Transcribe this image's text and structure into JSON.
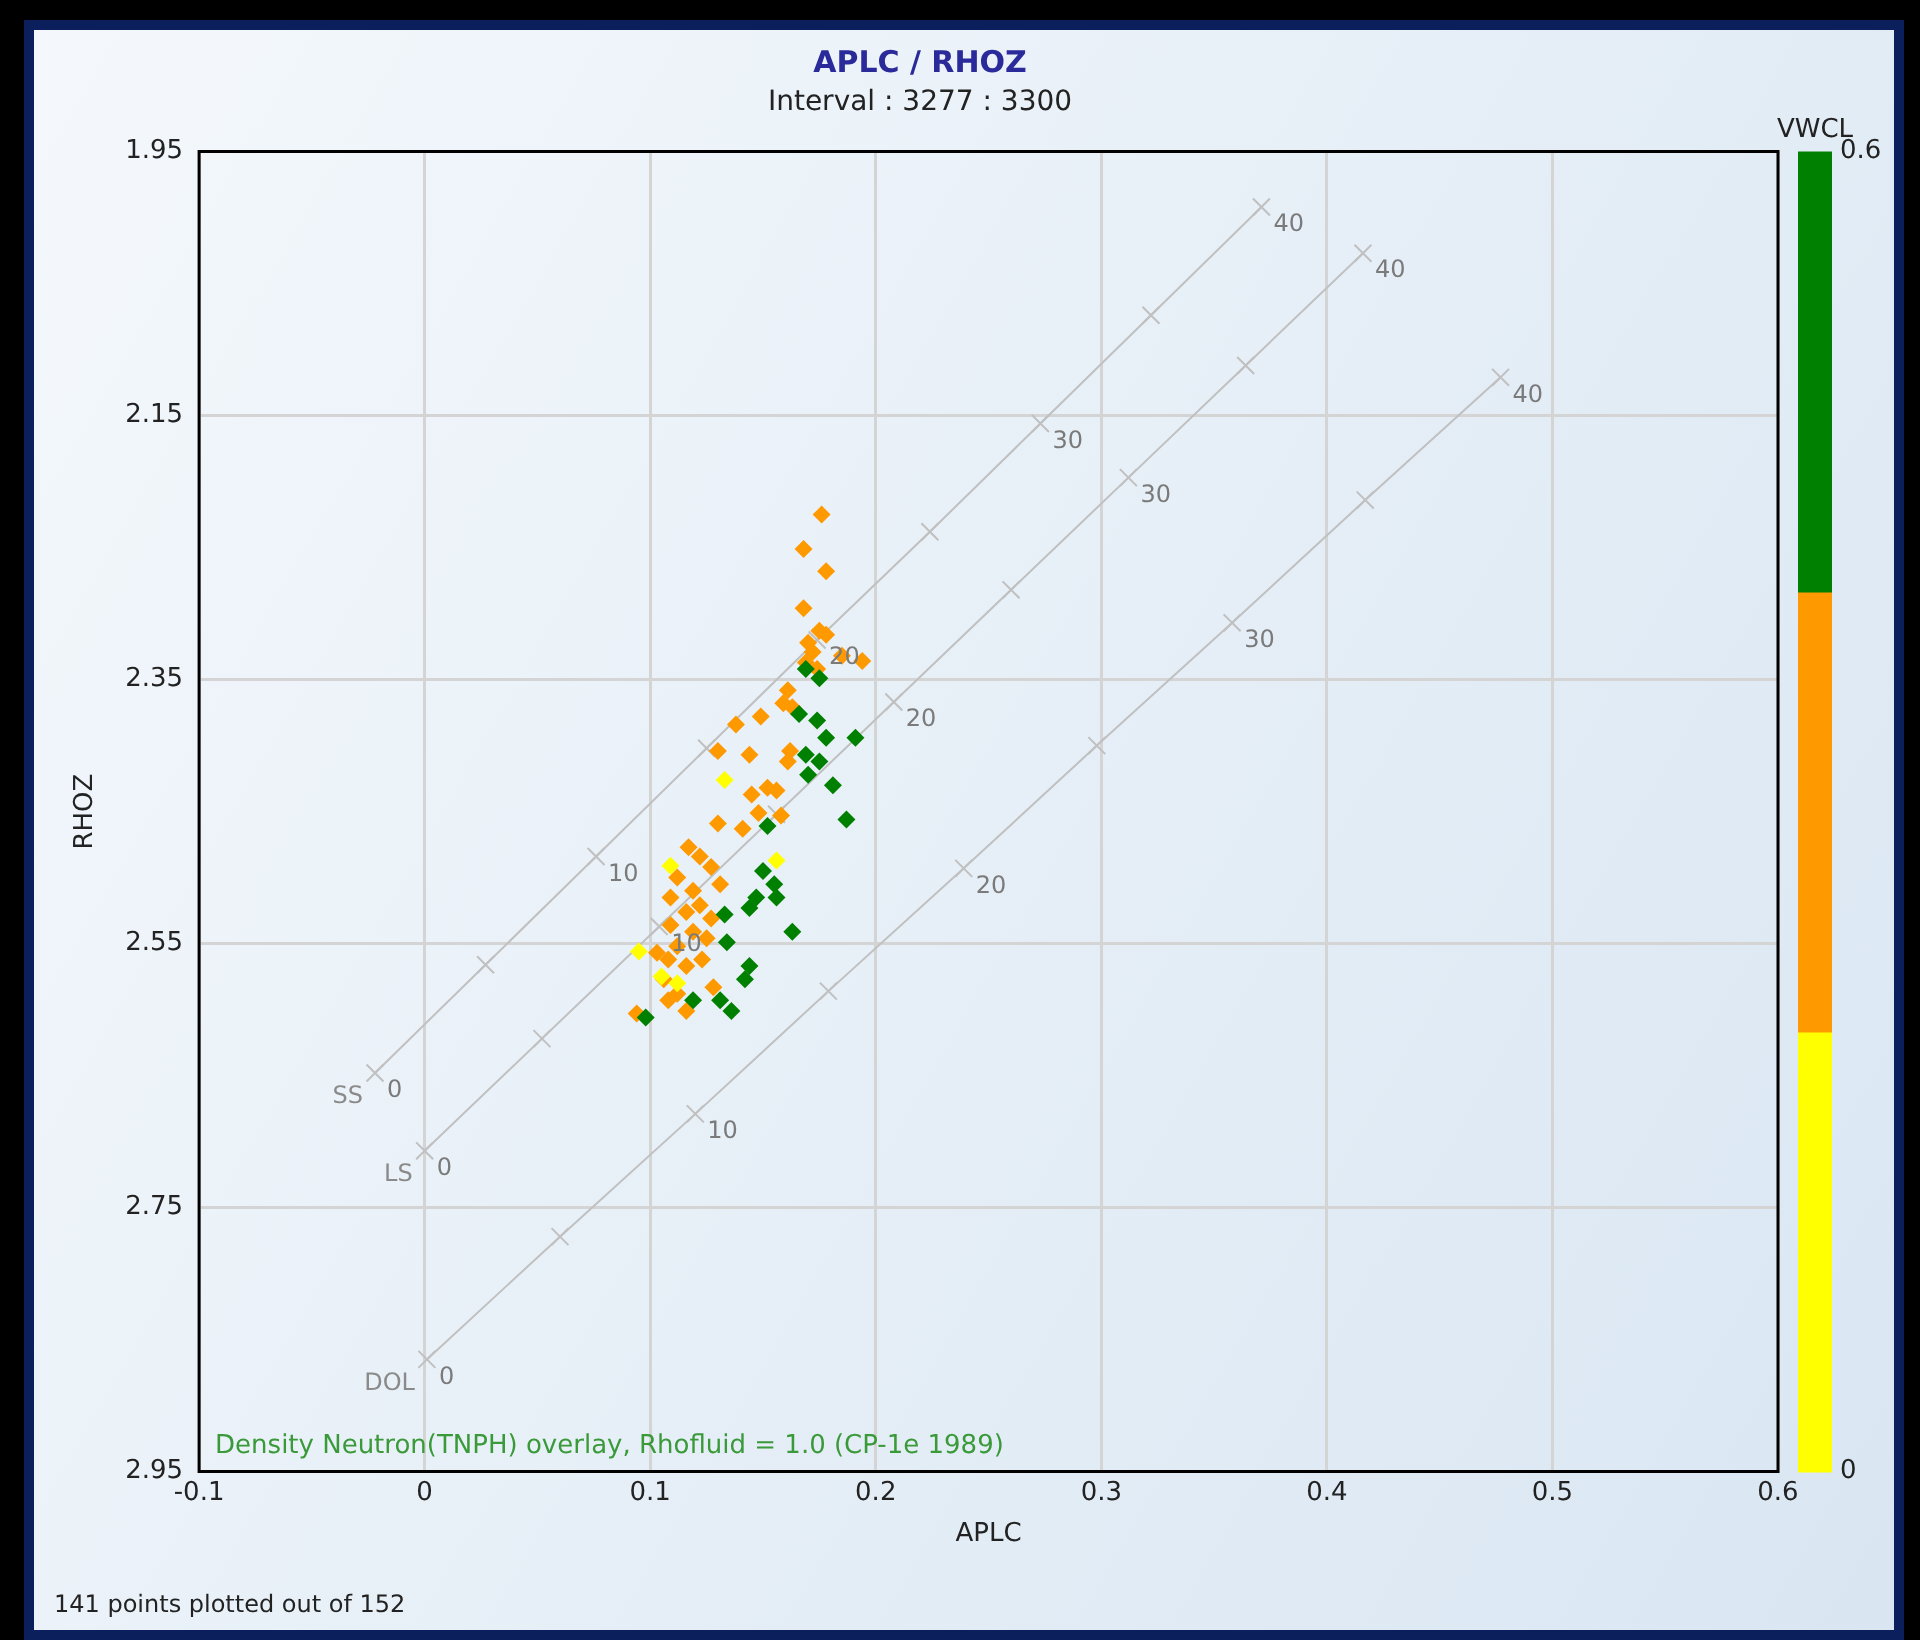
{
  "chart_data": {
    "type": "scatter",
    "title": "APLC / RHOZ",
    "subtitle": "Interval : 3277 : 3300",
    "xlabel": "APLC",
    "ylabel": "RHOZ",
    "clabel": "VWCL",
    "xlim": [
      -0.1,
      0.6
    ],
    "xticks": [
      -0.1,
      0,
      0.1,
      0.2,
      0.3,
      0.4,
      0.5,
      0.6
    ],
    "ylim": [
      2.95,
      1.95
    ],
    "yticks": [
      1.95,
      2.15,
      2.35,
      2.55,
      2.75,
      2.95
    ],
    "clim": [
      0,
      0.6
    ],
    "cticks": [
      0,
      0.6
    ],
    "colors": [
      "#ffff00",
      "#ff9900",
      "#008000"
    ],
    "grid": true,
    "legend": false,
    "annotations": [
      "Density Neutron(TNPH) overlay, Rhofluid = 1.0 (CP-1e 1989)",
      "141 points plotted out of 152",
      {
        "text": "0",
        "x": -0.022,
        "y": 2.648
      },
      {
        "text": "10",
        "x": 0.076,
        "y": 2.484
      },
      {
        "text": "20",
        "x": 0.174,
        "y": 2.32
      },
      {
        "text": "30",
        "x": 0.273,
        "y": 2.156
      },
      {
        "text": "40",
        "x": 0.371,
        "y": 1.992
      },
      {
        "text": "0",
        "x": 0,
        "y": 2.707
      },
      {
        "text": "10",
        "x": 0.104,
        "y": 2.537
      },
      {
        "text": "20",
        "x": 0.208,
        "y": 2.367
      },
      {
        "text": "30",
        "x": 0.312,
        "y": 2.197
      },
      {
        "text": "40",
        "x": 0.416,
        "y": 2.027
      },
      {
        "text": "0",
        "x": 0.001,
        "y": 2.865
      },
      {
        "text": "10",
        "x": 0.12,
        "y": 2.679
      },
      {
        "text": "20",
        "x": 0.239,
        "y": 2.493
      },
      {
        "text": "30",
        "x": 0.358,
        "y": 2.307
      },
      {
        "text": "40",
        "x": 0.477,
        "y": 2.121
      }
    ],
    "series": [
      {
        "name": "SS",
        "type": "line",
        "marker": "cross",
        "color": "#c0c0c0",
        "x": [
          -0.022,
          0.027,
          0.076,
          0.125,
          0.174,
          0.224,
          0.273,
          0.322,
          0.371
        ],
        "values": [
          2.648,
          2.566,
          2.484,
          2.402,
          2.32,
          2.238,
          2.156,
          2.074,
          1.992
        ]
      },
      {
        "name": "LS",
        "type": "line",
        "marker": "cross",
        "color": "#c0c0c0",
        "x": [
          0,
          0.052,
          0.104,
          0.156,
          0.208,
          0.26,
          0.312,
          0.364,
          0.416
        ],
        "values": [
          2.707,
          2.622,
          2.537,
          2.452,
          2.367,
          2.282,
          2.197,
          2.112,
          2.027
        ]
      },
      {
        "name": "DOL",
        "type": "line",
        "marker": "cross",
        "color": "#c0c0c0",
        "x": [
          0.001,
          0.06,
          0.12,
          0.179,
          0.239,
          0.298,
          0.358,
          0.417,
          0.477
        ],
        "values": [
          2.865,
          2.772,
          2.679,
          2.586,
          2.493,
          2.4,
          2.307,
          2.214,
          2.121
        ]
      },
      {
        "marker": "diamond",
        "x": [
          0.176,
          0.168,
          0.178,
          0.168,
          0.175,
          0.178,
          0.17,
          0.172,
          0.185,
          0.194,
          0.169,
          0.174,
          0.161,
          0.159,
          0.149,
          0.138,
          0.163,
          0.13,
          0.144,
          0.162,
          0.161,
          0.145,
          0.152,
          0.156,
          0.148,
          0.158,
          0.141,
          0.13,
          0.117,
          0.122,
          0.127,
          0.131,
          0.112,
          0.119,
          0.109,
          0.116,
          0.122,
          0.127,
          0.109,
          0.119,
          0.112,
          0.125,
          0.103,
          0.108,
          0.116,
          0.123,
          0.106,
          0.112,
          0.128,
          0.108,
          0.094,
          0.116,
          0.133,
          0.109,
          0.156,
          0.095,
          0.105,
          0.112,
          0.169,
          0.175,
          0.166,
          0.174,
          0.178,
          0.191,
          0.169,
          0.175,
          0.17,
          0.181,
          0.187,
          0.152,
          0.15,
          0.155,
          0.147,
          0.156,
          0.144,
          0.133,
          0.163,
          0.134,
          0.144,
          0.142,
          0.119,
          0.131,
          0.136,
          0.098
        ],
        "values": [
          2.225,
          2.251,
          2.268,
          2.296,
          2.313,
          2.316,
          2.322,
          2.329,
          2.332,
          2.336,
          2.337,
          2.342,
          2.358,
          2.368,
          2.378,
          2.384,
          2.371,
          2.404,
          2.407,
          2.404,
          2.412,
          2.437,
          2.432,
          2.434,
          2.451,
          2.453,
          2.463,
          2.459,
          2.477,
          2.484,
          2.492,
          2.505,
          2.5,
          2.51,
          2.515,
          2.526,
          2.521,
          2.531,
          2.536,
          2.541,
          2.552,
          2.546,
          2.557,
          2.562,
          2.567,
          2.562,
          2.577,
          2.588,
          2.583,
          2.593,
          2.603,
          2.601,
          2.426,
          2.491,
          2.487,
          2.556,
          2.575,
          2.58,
          2.342,
          2.349,
          2.376,
          2.381,
          2.394,
          2.394,
          2.407,
          2.412,
          2.422,
          2.43,
          2.456,
          2.461,
          2.495,
          2.505,
          2.515,
          2.515,
          2.523,
          2.528,
          2.541,
          2.549,
          2.567,
          2.577,
          2.593,
          2.593,
          2.601,
          2.606
        ],
        "colors": [
          "#ff9900",
          "#ff9900",
          "#ff9900",
          "#ff9900",
          "#ff9900",
          "#ff9900",
          "#ff9900",
          "#ff9900",
          "#ff9900",
          "#ff9900",
          "#ff9900",
          "#ff9900",
          "#ff9900",
          "#ff9900",
          "#ff9900",
          "#ff9900",
          "#ff9900",
          "#ff9900",
          "#ff9900",
          "#ff9900",
          "#ff9900",
          "#ff9900",
          "#ff9900",
          "#ff9900",
          "#ff9900",
          "#ff9900",
          "#ff9900",
          "#ff9900",
          "#ff9900",
          "#ff9900",
          "#ff9900",
          "#ff9900",
          "#ff9900",
          "#ff9900",
          "#ff9900",
          "#ff9900",
          "#ff9900",
          "#ff9900",
          "#ff9900",
          "#ff9900",
          "#ff9900",
          "#ff9900",
          "#ff9900",
          "#ff9900",
          "#ff9900",
          "#ff9900",
          "#ff9900",
          "#ff9900",
          "#ff9900",
          "#ff9900",
          "#ff9900",
          "#ff9900",
          "#ffff00",
          "#ffff00",
          "#ffff00",
          "#ffff00",
          "#ffff00",
          "#ffff00",
          "#008000",
          "#008000",
          "#008000",
          "#008000",
          "#008000",
          "#008000",
          "#008000",
          "#008000",
          "#008000",
          "#008000",
          "#008000",
          "#008000",
          "#008000",
          "#008000",
          "#008000",
          "#008000",
          "#008000",
          "#008000",
          "#008000",
          "#008000",
          "#008000",
          "#008000",
          "#008000",
          "#008000",
          "#008000",
          "#008000"
        ]
      }
    ]
  }
}
